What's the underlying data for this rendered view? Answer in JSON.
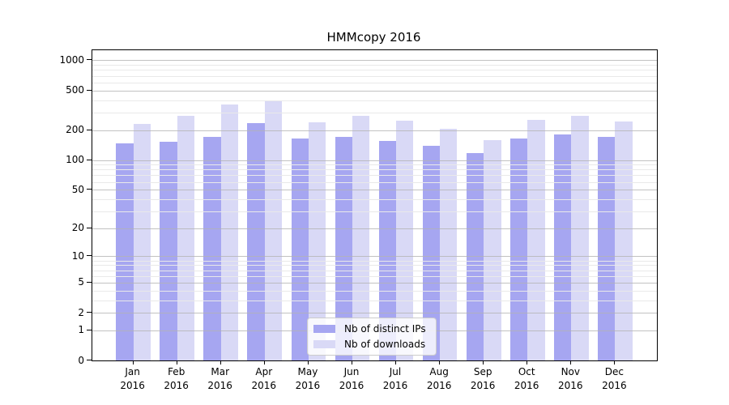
{
  "chart_data": {
    "type": "bar",
    "title": "HMMcopy 2016",
    "y_scale": "log10(1+x)",
    "grid": true,
    "legend_position": "inside-bottom-center",
    "categories": [
      "Jan 2016",
      "Feb 2016",
      "Mar 2016",
      "Apr 2016",
      "May 2016",
      "Jun 2016",
      "Jul 2016",
      "Aug 2016",
      "Sep 2016",
      "Oct 2016",
      "Nov 2016",
      "Dec 2016"
    ],
    "series": [
      {
        "name": "Nb of distinct IPs",
        "color": "#a6a6f1",
        "values": [
          146,
          152,
          172,
          237,
          165,
          172,
          156,
          140,
          118,
          164,
          180,
          170
        ]
      },
      {
        "name": "Nb of downloads",
        "color": "#d9d9f6",
        "values": [
          232,
          280,
          358,
          390,
          240,
          280,
          249,
          207,
          158,
          254,
          276,
          246
        ]
      }
    ],
    "y_ticks": [
      0,
      1,
      2,
      5,
      10,
      20,
      50,
      100,
      200,
      500,
      1000
    ],
    "y_minor_ticks": [
      3,
      4,
      6,
      7,
      8,
      9,
      30,
      40,
      60,
      70,
      80,
      90,
      300,
      400,
      600,
      700,
      800,
      900
    ],
    "ylim": [
      0,
      1250
    ],
    "xlabel": "",
    "ylabel": ""
  },
  "colors": {
    "background": "#ffffff",
    "axis": "#000000",
    "major_grid": "#b3b3b3",
    "minor_grid": "#e9e9e9"
  }
}
